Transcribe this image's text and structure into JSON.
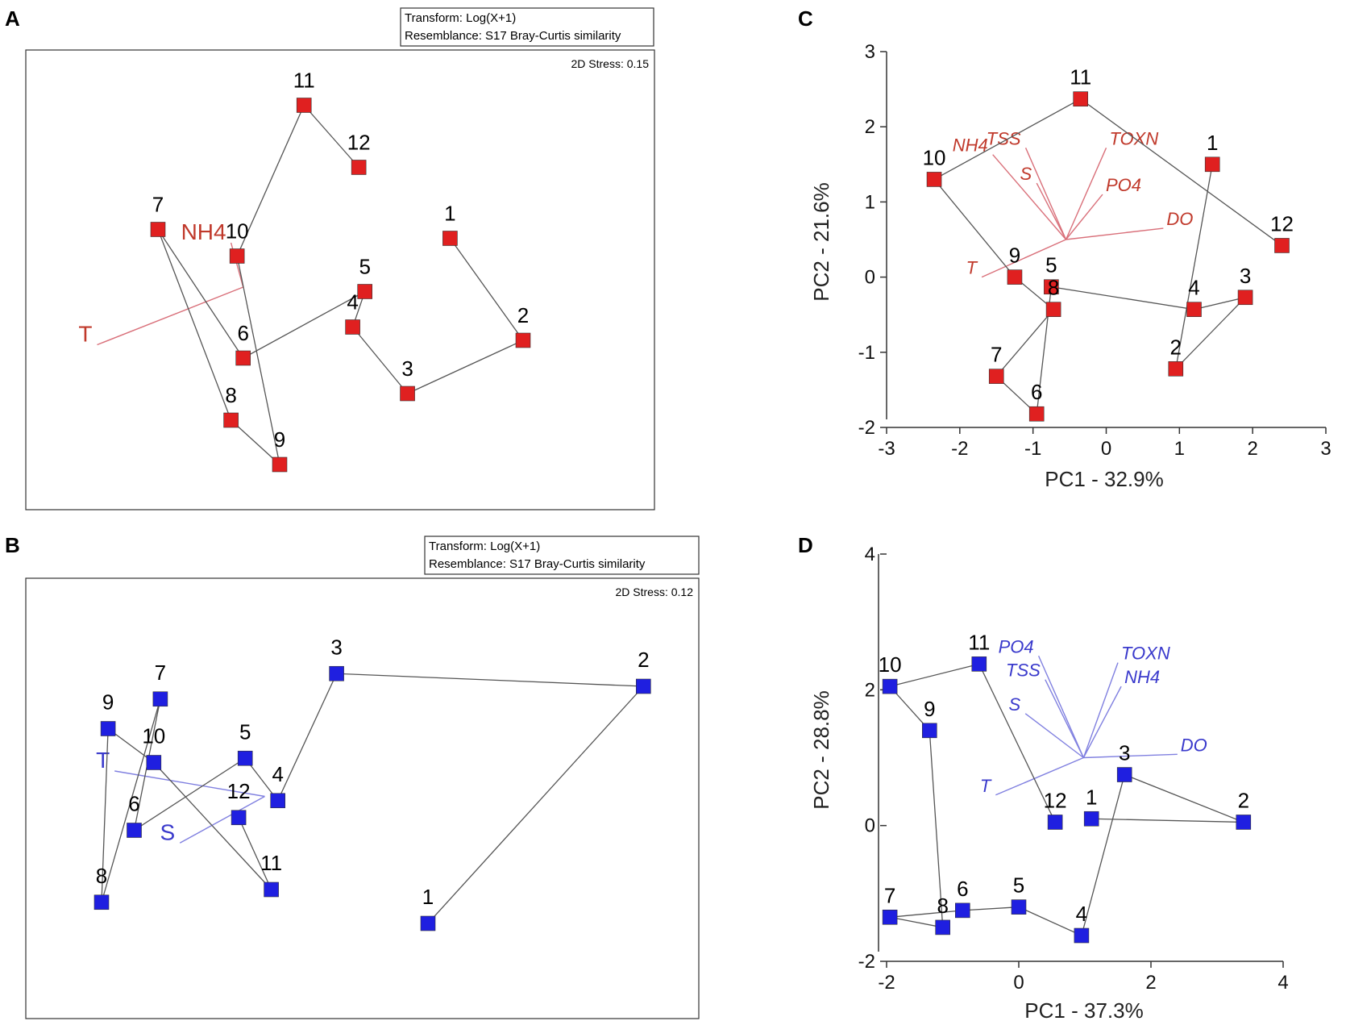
{
  "colors": {
    "red": "#e02020",
    "blue": "#1f1fe0",
    "red_vector": "#d9707a",
    "blue_vector": "#8080e0",
    "connector": "#555555"
  },
  "chart_data": [
    {
      "panel": "A",
      "type": "scatter",
      "subtype": "nMDS",
      "transform": "Transform: Log(X+1)",
      "resemblance": "Resemblance: S17 Bray-Curtis similarity",
      "stress": "2D Stress: 0.15",
      "marker_color": "red",
      "xlim": [
        0,
        100
      ],
      "ylim": [
        0,
        100
      ],
      "points": [
        {
          "label": "1",
          "x": 68,
          "y": 59
        },
        {
          "label": "2",
          "x": 80,
          "y": 36
        },
        {
          "label": "3",
          "x": 61,
          "y": 24
        },
        {
          "label": "4",
          "x": 52,
          "y": 39
        },
        {
          "label": "5",
          "x": 54,
          "y": 47
        },
        {
          "label": "6",
          "x": 34,
          "y": 32
        },
        {
          "label": "7",
          "x": 20,
          "y": 61
        },
        {
          "label": "8",
          "x": 32,
          "y": 18
        },
        {
          "label": "9",
          "x": 40,
          "y": 8
        },
        {
          "label": "10",
          "x": 33,
          "y": 55
        },
        {
          "label": "11",
          "x": 44,
          "y": 89
        },
        {
          "label": "12",
          "x": 53,
          "y": 75
        }
      ],
      "path": [
        "1",
        "2",
        "3",
        "4",
        "5",
        "6",
        "7",
        "8",
        "9",
        "10",
        "11",
        "12"
      ],
      "vectors": [
        {
          "label": "T",
          "x": 10,
          "y": 35
        },
        {
          "label": "NH4",
          "x": 32,
          "y": 58
        }
      ],
      "vector_origin": {
        "x": 34,
        "y": 48
      }
    },
    {
      "panel": "B",
      "type": "scatter",
      "subtype": "nMDS",
      "transform": "Transform: Log(X+1)",
      "resemblance": "Resemblance: S17 Bray-Curtis similarity",
      "stress": "2D Stress: 0.12",
      "marker_color": "blue",
      "xlim": [
        0,
        100
      ],
      "ylim": [
        0,
        100
      ],
      "points": [
        {
          "label": "1",
          "x": 60,
          "y": 20
        },
        {
          "label": "2",
          "x": 93,
          "y": 76
        },
        {
          "label": "3",
          "x": 46,
          "y": 79
        },
        {
          "label": "4",
          "x": 37,
          "y": 49
        },
        {
          "label": "5",
          "x": 32,
          "y": 59
        },
        {
          "label": "6",
          "x": 15,
          "y": 42
        },
        {
          "label": "7",
          "x": 19,
          "y": 73
        },
        {
          "label": "8",
          "x": 10,
          "y": 25
        },
        {
          "label": "9",
          "x": 11,
          "y": 66
        },
        {
          "label": "10",
          "x": 18,
          "y": 58
        },
        {
          "label": "11",
          "x": 36,
          "y": 28
        },
        {
          "label": "12",
          "x": 31,
          "y": 45
        }
      ],
      "path": [
        "1",
        "2",
        "3",
        "4",
        "5",
        "6",
        "7",
        "8",
        "9",
        "10",
        "11",
        "12"
      ],
      "vectors": [
        {
          "label": "T",
          "x": 12,
          "y": 56
        },
        {
          "label": "S",
          "x": 22,
          "y": 39
        }
      ],
      "vector_origin": {
        "x": 35,
        "y": 50
      }
    },
    {
      "panel": "C",
      "type": "scatter",
      "subtype": "PCA",
      "xlabel": "PC1 - 32.9%",
      "ylabel": "PC2 - 21.6%",
      "xlim": [
        -3,
        3
      ],
      "ylim": [
        -2,
        3
      ],
      "xticks": [
        "-3",
        "-2",
        "-1",
        "0",
        "1",
        "2",
        "3"
      ],
      "yticks": [
        "-2",
        "-1",
        "0",
        "1",
        "2",
        "3"
      ],
      "marker_color": "red",
      "points": [
        {
          "label": "1",
          "x": 1.45,
          "y": 1.5
        },
        {
          "label": "2",
          "x": 0.95,
          "y": -1.22
        },
        {
          "label": "3",
          "x": 1.9,
          "y": -0.27
        },
        {
          "label": "4",
          "x": 1.2,
          "y": -0.43
        },
        {
          "label": "5",
          "x": -0.75,
          "y": -0.13
        },
        {
          "label": "6",
          "x": -0.95,
          "y": -1.82
        },
        {
          "label": "7",
          "x": -1.5,
          "y": -1.32
        },
        {
          "label": "8",
          "x": -0.72,
          "y": -0.43
        },
        {
          "label": "9",
          "x": -1.25,
          "y": 0.0
        },
        {
          "label": "10",
          "x": -2.35,
          "y": 1.3
        },
        {
          "label": "11",
          "x": -0.35,
          "y": 2.37
        },
        {
          "label": "12",
          "x": 2.4,
          "y": 0.42
        }
      ],
      "path": [
        "1",
        "2",
        "3",
        "4",
        "5",
        "6",
        "7",
        "8",
        "9",
        "10",
        "11",
        "12"
      ],
      "vector_origin": {
        "x": -0.55,
        "y": 0.5
      },
      "vectors": [
        {
          "label": "T",
          "x": -1.7,
          "y": 0.0
        },
        {
          "label": "NH4",
          "x": -1.55,
          "y": 1.63
        },
        {
          "label": "TSS",
          "x": -1.1,
          "y": 1.72
        },
        {
          "label": "S",
          "x": -0.95,
          "y": 1.25
        },
        {
          "label": "TOXN",
          "x": 0.0,
          "y": 1.72
        },
        {
          "label": "PO4",
          "x": -0.05,
          "y": 1.1
        },
        {
          "label": "DO",
          "x": 0.78,
          "y": 0.65
        }
      ]
    },
    {
      "panel": "D",
      "type": "scatter",
      "subtype": "PCA",
      "xlabel": "PC1 - 37.3%",
      "ylabel": "PC2 - 28.8%",
      "xlim": [
        -2,
        4
      ],
      "ylim": [
        -2,
        4
      ],
      "xticks": [
        "-2",
        "0",
        "2",
        "4"
      ],
      "yticks": [
        "-2",
        "0",
        "2",
        "4"
      ],
      "marker_color": "blue",
      "points": [
        {
          "label": "1",
          "x": 1.1,
          "y": 0.1
        },
        {
          "label": "2",
          "x": 3.4,
          "y": 0.05
        },
        {
          "label": "3",
          "x": 1.6,
          "y": 0.75
        },
        {
          "label": "4",
          "x": 0.95,
          "y": -1.62
        },
        {
          "label": "5",
          "x": 0.0,
          "y": -1.2
        },
        {
          "label": "6",
          "x": -0.85,
          "y": -1.25
        },
        {
          "label": "7",
          "x": -1.95,
          "y": -1.35
        },
        {
          "label": "8",
          "x": -1.15,
          "y": -1.5
        },
        {
          "label": "9",
          "x": -1.35,
          "y": 1.4
        },
        {
          "label": "10",
          "x": -1.95,
          "y": 2.05
        },
        {
          "label": "11",
          "x": -0.6,
          "y": 2.38
        },
        {
          "label": "12",
          "x": 0.55,
          "y": 0.05
        }
      ],
      "path": [
        "1",
        "2",
        "3",
        "4",
        "5",
        "6",
        "7",
        "8",
        "9",
        "10",
        "11",
        "12"
      ],
      "vector_origin": {
        "x": 0.98,
        "y": 1.0
      },
      "vectors": [
        {
          "label": "T",
          "x": -0.35,
          "y": 0.45
        },
        {
          "label": "S",
          "x": 0.1,
          "y": 1.65
        },
        {
          "label": "TSS",
          "x": 0.4,
          "y": 2.15
        },
        {
          "label": "PO4",
          "x": 0.3,
          "y": 2.5
        },
        {
          "label": "TOXN",
          "x": 1.5,
          "y": 2.4
        },
        {
          "label": "NH4",
          "x": 1.55,
          "y": 2.05
        },
        {
          "label": "DO",
          "x": 2.4,
          "y": 1.05
        }
      ]
    }
  ]
}
